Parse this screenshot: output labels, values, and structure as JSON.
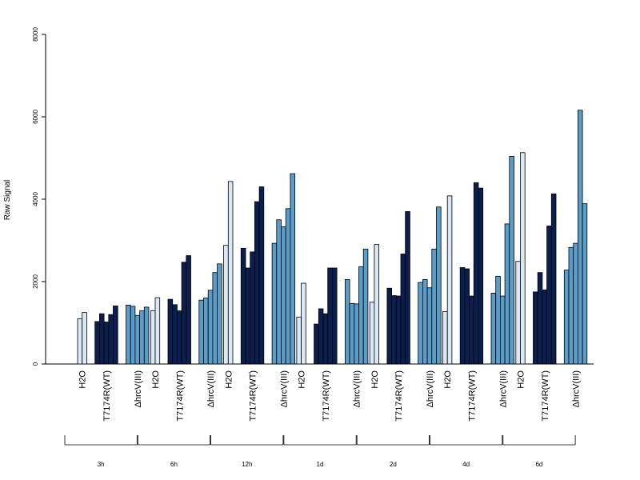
{
  "chart_data": {
    "type": "bar",
    "ylabel": "Raw Signal",
    "ylim": [
      0,
      8000
    ],
    "yticks": [
      "0",
      "2000",
      "4000",
      "6000",
      "8000"
    ],
    "conditions": [
      {
        "name": "H2O",
        "label": "H2O",
        "color": "#dbe8f5"
      },
      {
        "name": "T7174R(WT)",
        "label": "T7174R(WT)",
        "color": "#0b1f4e"
      },
      {
        "name": "ΔhrcV(III)",
        "label": "ΔhrcV(III)",
        "color": "#5b9dc9"
      }
    ],
    "groups": [
      {
        "label": "3h",
        "values": [
          [
            1100,
            1250
          ],
          [
            1030,
            1220,
            1020,
            1200,
            1410
          ],
          [
            1430,
            1400,
            1180,
            1290,
            1380
          ]
        ]
      },
      {
        "label": "6h",
        "values": [
          [
            1290,
            1610
          ],
          [
            1570,
            1440,
            1290,
            2470,
            2630
          ],
          [
            1550,
            1600,
            1790,
            2220,
            2430
          ]
        ]
      },
      {
        "label": "12h",
        "values": [
          [
            2880,
            4430
          ],
          [
            2810,
            2330,
            2720,
            3940,
            4300
          ],
          [
            2930,
            3500,
            3330,
            3770,
            4620
          ]
        ]
      },
      {
        "label": "1d",
        "values": [
          [
            1140,
            1960
          ],
          [
            970,
            1340,
            1220,
            2330,
            2330
          ],
          [
            2050,
            1470,
            1460,
            2360,
            2790
          ]
        ]
      },
      {
        "label": "2d",
        "values": [
          [
            1500,
            2900
          ],
          [
            1840,
            1660,
            1650,
            2670,
            3700
          ],
          [
            1980,
            2050,
            1850,
            2790,
            3810
          ]
        ]
      },
      {
        "label": "4d",
        "values": [
          [
            1270,
            4080
          ],
          [
            2340,
            2310,
            1650,
            4400,
            4270
          ],
          [
            1720,
            2130,
            1650,
            3400,
            5040
          ]
        ]
      },
      {
        "label": "6d",
        "values": [
          [
            2490,
            5130
          ],
          [
            1750,
            2220,
            1800,
            3350,
            4130
          ],
          [
            2280,
            2830,
            2930,
            6160,
            3890
          ]
        ]
      }
    ]
  }
}
